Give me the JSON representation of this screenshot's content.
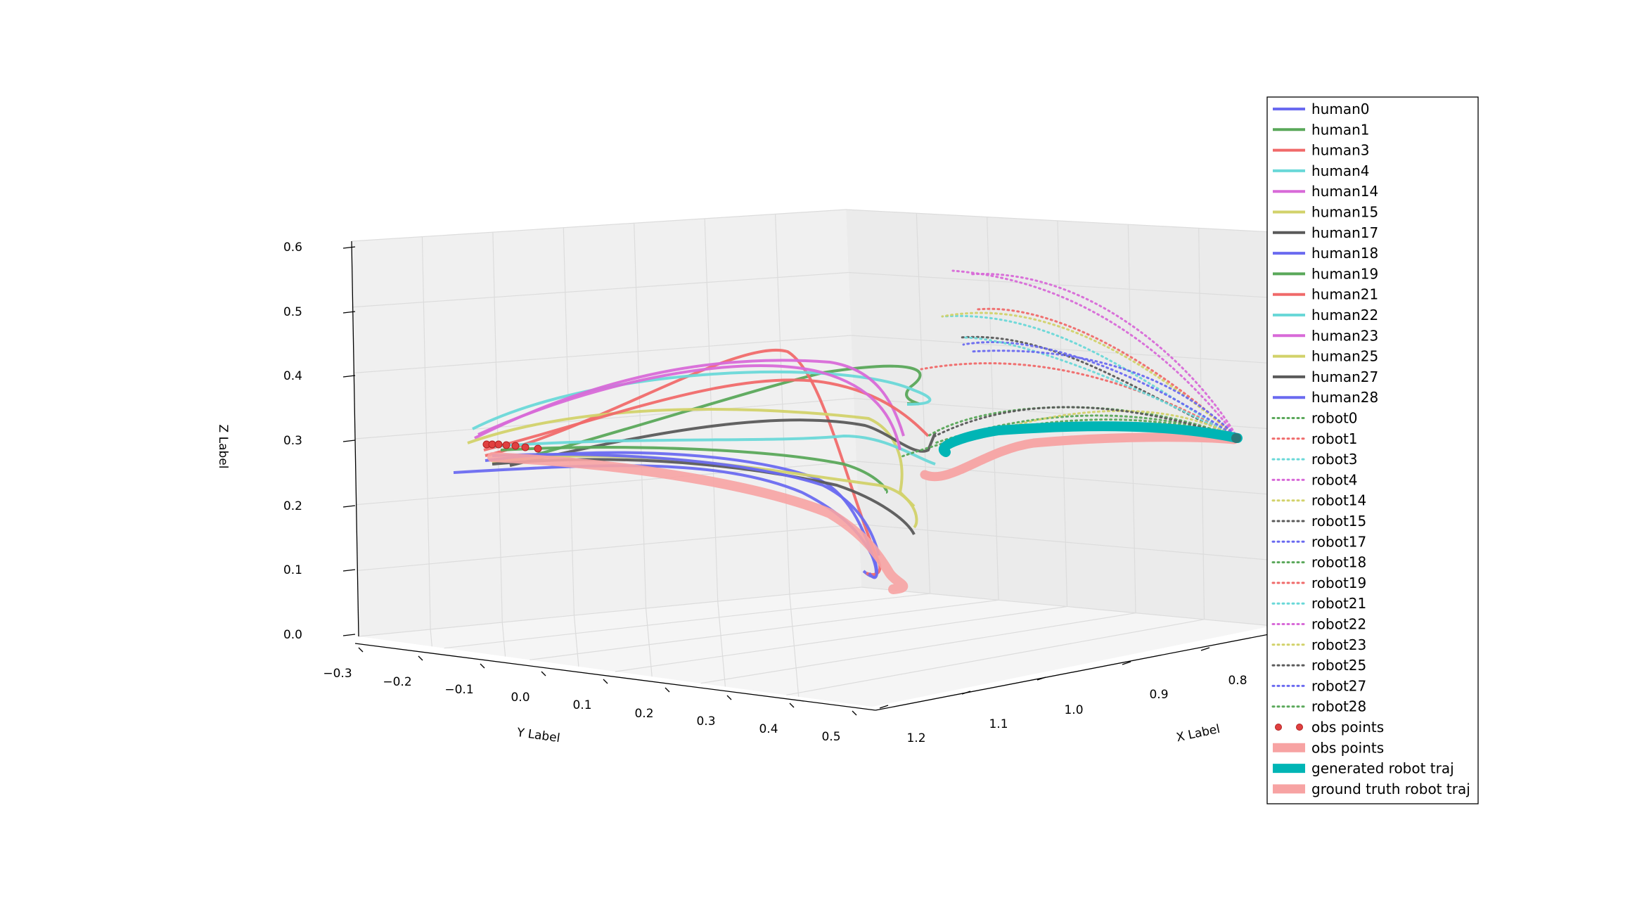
{
  "chart_data": {
    "type": "line3d",
    "xlabel": "X Label",
    "ylabel": "Y Label",
    "zlabel": "Z Label",
    "x_ticks": [
      "1.2",
      "1.1",
      "1.0",
      "0.9",
      "0.8"
    ],
    "y_ticks": [
      "−0.3",
      "−0.2",
      "−0.1",
      "0.0",
      "0.1",
      "0.2",
      "0.3",
      "0.4",
      "0.5"
    ],
    "z_ticks": [
      "0.0",
      "0.1",
      "0.2",
      "0.3",
      "0.4",
      "0.5",
      "0.6"
    ],
    "grid": true,
    "legend_position": "right",
    "colors": {
      "blue": "#6a6af0",
      "green": "#5aa85a",
      "red": "#f06a6a",
      "cyan": "#6ad8d8",
      "magenta": "#d86ad8",
      "olive": "#d2d26a",
      "gray": "#5a5a5a",
      "teal": "#00b5b5",
      "pink": "#f7a3a3",
      "obs_red": "#e04040"
    },
    "legend": [
      {
        "label": "human0",
        "color": "#6a6af0",
        "style": "solid"
      },
      {
        "label": "human1",
        "color": "#5aa85a",
        "style": "solid"
      },
      {
        "label": "human3",
        "color": "#f06a6a",
        "style": "solid"
      },
      {
        "label": "human4",
        "color": "#6ad8d8",
        "style": "solid"
      },
      {
        "label": "human14",
        "color": "#d86ad8",
        "style": "solid"
      },
      {
        "label": "human15",
        "color": "#d2d26a",
        "style": "solid"
      },
      {
        "label": "human17",
        "color": "#5a5a5a",
        "style": "solid"
      },
      {
        "label": "human18",
        "color": "#6a6af0",
        "style": "solid"
      },
      {
        "label": "human19",
        "color": "#5aa85a",
        "style": "solid"
      },
      {
        "label": "human21",
        "color": "#f06a6a",
        "style": "solid"
      },
      {
        "label": "human22",
        "color": "#6ad8d8",
        "style": "solid"
      },
      {
        "label": "human23",
        "color": "#d86ad8",
        "style": "solid"
      },
      {
        "label": "human25",
        "color": "#d2d26a",
        "style": "solid"
      },
      {
        "label": "human27",
        "color": "#5a5a5a",
        "style": "solid"
      },
      {
        "label": "human28",
        "color": "#6a6af0",
        "style": "solid"
      },
      {
        "label": "robot0",
        "color": "#5aa85a",
        "style": "dotted"
      },
      {
        "label": "robot1",
        "color": "#f06a6a",
        "style": "dotted"
      },
      {
        "label": "robot3",
        "color": "#6ad8d8",
        "style": "dotted"
      },
      {
        "label": "robot4",
        "color": "#d86ad8",
        "style": "dotted"
      },
      {
        "label": "robot14",
        "color": "#d2d26a",
        "style": "dotted"
      },
      {
        "label": "robot15",
        "color": "#5a5a5a",
        "style": "dotted"
      },
      {
        "label": "robot17",
        "color": "#6a6af0",
        "style": "dotted"
      },
      {
        "label": "robot18",
        "color": "#5aa85a",
        "style": "dotted"
      },
      {
        "label": "robot19",
        "color": "#f06a6a",
        "style": "dotted"
      },
      {
        "label": "robot21",
        "color": "#6ad8d8",
        "style": "dotted"
      },
      {
        "label": "robot22",
        "color": "#d86ad8",
        "style": "dotted"
      },
      {
        "label": "robot23",
        "color": "#d2d26a",
        "style": "dotted"
      },
      {
        "label": "robot25",
        "color": "#5a5a5a",
        "style": "dotted"
      },
      {
        "label": "robot27",
        "color": "#6a6af0",
        "style": "dotted"
      },
      {
        "label": "robot28",
        "color": "#5aa85a",
        "style": "dotted"
      },
      {
        "label": "obs points",
        "color": "#e04040",
        "style": "markers"
      },
      {
        "label": "obs points",
        "color": "#f7a3a3",
        "style": "thick"
      },
      {
        "label": "generated robot traj",
        "color": "#00b5b5",
        "style": "thick"
      },
      {
        "label": "ground truth robot traj",
        "color": "#f7a3a3",
        "style": "thick"
      }
    ]
  }
}
